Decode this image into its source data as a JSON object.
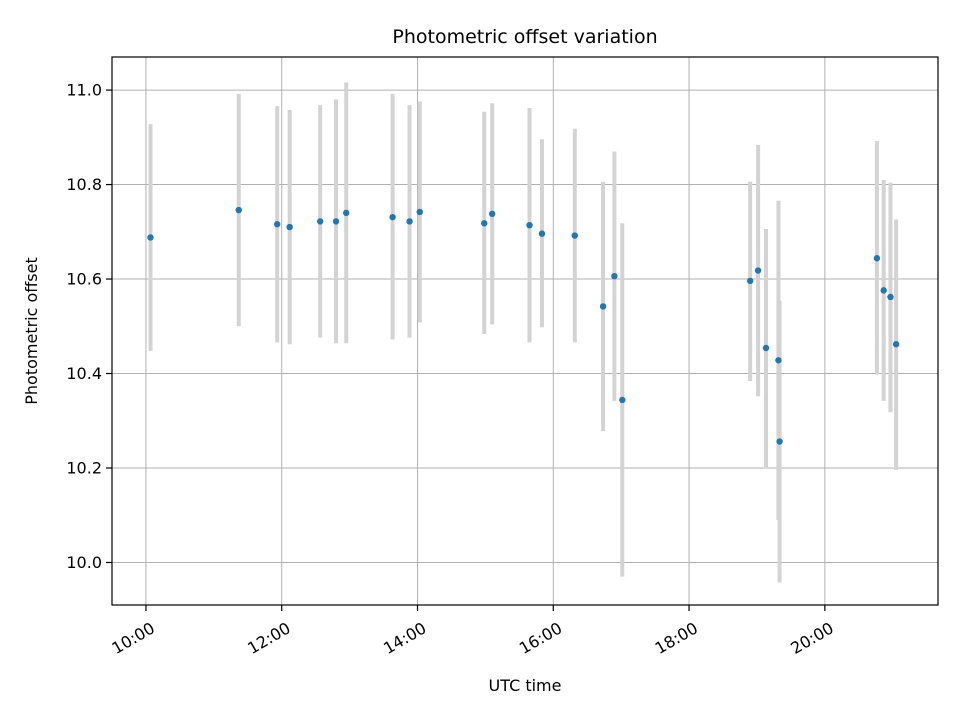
{
  "chart_data": {
    "type": "scatter",
    "title": "Photometric offset variation",
    "xlabel": "UTC time",
    "ylabel": "Photometric offset",
    "x_axis_kind": "time",
    "xlim": [
      "09:30",
      "21:40"
    ],
    "ylim": [
      9.91,
      11.07
    ],
    "x_ticks": [
      "10:00",
      "12:00",
      "14:00",
      "16:00",
      "18:00",
      "20:00"
    ],
    "y_ticks": [
      "10.0",
      "10.2",
      "10.4",
      "10.6",
      "10.8",
      "11.0"
    ],
    "grid": true,
    "colors": {
      "point": "#1f77b4",
      "errorbar": "#d3d3d3",
      "grid": "#b0b0b0"
    },
    "series": [
      {
        "x": [
          "10:04",
          "11:22",
          "11:56",
          "12:07",
          "12:34",
          "12:48",
          "12:57",
          "13:38",
          "13:53",
          "14:02",
          "14:59",
          "15:06",
          "15:39",
          "15:50",
          "16:19",
          "16:44",
          "16:54",
          "17:01",
          "18:54",
          "19:01",
          "19:08",
          "19:19",
          "19:20",
          "20:46",
          "20:52",
          "20:58",
          "21:03"
        ],
        "y": [
          10.688,
          10.746,
          10.716,
          10.71,
          10.722,
          10.722,
          10.74,
          10.731,
          10.722,
          10.742,
          10.718,
          10.738,
          10.714,
          10.696,
          10.692,
          10.542,
          10.606,
          10.344,
          10.596,
          10.618,
          10.454,
          10.428,
          10.256,
          10.644,
          10.576,
          10.562,
          10.462
        ],
        "err_low": [
          10.448,
          10.5,
          10.466,
          10.462,
          10.476,
          10.464,
          10.464,
          10.472,
          10.476,
          10.508,
          10.484,
          10.504,
          10.466,
          10.498,
          10.466,
          10.278,
          10.342,
          9.97,
          10.384,
          10.352,
          10.202,
          10.09,
          9.958,
          10.398,
          10.342,
          10.318,
          10.196
        ],
        "err_high": [
          10.928,
          10.992,
          10.966,
          10.958,
          10.968,
          10.98,
          11.016,
          10.992,
          10.968,
          10.976,
          10.954,
          10.972,
          10.962,
          10.896,
          10.918,
          10.806,
          10.87,
          10.718,
          10.806,
          10.884,
          10.706,
          10.766,
          10.554,
          10.892,
          10.81,
          10.804,
          10.726
        ]
      }
    ]
  }
}
